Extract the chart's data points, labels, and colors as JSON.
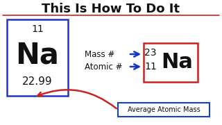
{
  "bg_color": "#ffffff",
  "title": "This Is How To Do It",
  "title_color": "#111111",
  "title_underline_color": "#cc2222",
  "left_box_border_color": "#2233cc",
  "right_box_border_color": "#cc2222",
  "avg_box_border_color": "#1144cc",
  "arrow_color": "#1133cc",
  "red_arrow_color": "#cc2222",
  "text_color": "#111111",
  "left_atomic_number": "11",
  "left_symbol": "Na",
  "left_mass": "22.99",
  "right_mass_number": "23",
  "right_atomic_number": "11",
  "right_symbol": "Na",
  "label_mass": "Mass #",
  "label_atomic": "Atomic #",
  "label_avg": "Average Atomic Mass"
}
